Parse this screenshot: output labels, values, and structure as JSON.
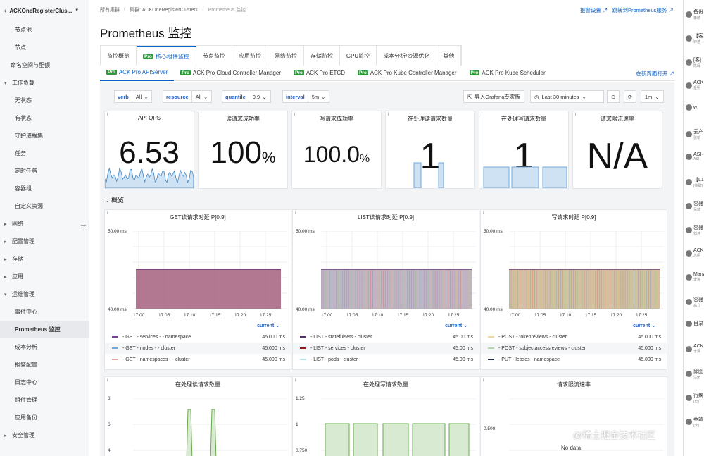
{
  "sidebar": {
    "cluster": "ACKOneRegisterClus...",
    "items": [
      {
        "label": "节点池",
        "type": "sub"
      },
      {
        "label": "节点",
        "type": "sub"
      },
      {
        "label": "命名空间与配额",
        "type": "top"
      },
      {
        "label": "工作负载",
        "type": "grp",
        "open": true
      },
      {
        "label": "无状态",
        "type": "sub"
      },
      {
        "label": "有状态",
        "type": "sub"
      },
      {
        "label": "守护进程集",
        "type": "sub"
      },
      {
        "label": "任务",
        "type": "sub"
      },
      {
        "label": "定时任务",
        "type": "sub"
      },
      {
        "label": "容器组",
        "type": "sub"
      },
      {
        "label": "自定义资源",
        "type": "sub"
      },
      {
        "label": "网络",
        "type": "grp",
        "open": false
      },
      {
        "label": "配置管理",
        "type": "grp",
        "open": false
      },
      {
        "label": "存储",
        "type": "grp",
        "open": false
      },
      {
        "label": "应用",
        "type": "grp",
        "open": false
      },
      {
        "label": "运维管理",
        "type": "grp",
        "open": true
      },
      {
        "label": "事件中心",
        "type": "sub"
      },
      {
        "label": "Prometheus 监控",
        "type": "sub",
        "active": true
      },
      {
        "label": "成本分析",
        "type": "sub"
      },
      {
        "label": "报警配置",
        "type": "sub"
      },
      {
        "label": "日志中心",
        "type": "sub"
      },
      {
        "label": "组件管理",
        "type": "sub"
      },
      {
        "label": "应用备份",
        "type": "sub"
      },
      {
        "label": "安全管理",
        "type": "grp",
        "open": false
      }
    ]
  },
  "breadcrumb": {
    "all": "所有集群",
    "cluster": "集群: ACKOneRegisterCluster1",
    "current": "Prometheus 监控"
  },
  "toplinks": {
    "alert": "报警设置",
    "grafana": "跳转到Prometheus服务"
  },
  "page": {
    "title": "Prometheus 监控"
  },
  "tabs1": [
    {
      "label": "监控概览"
    },
    {
      "label": "核心组件监控",
      "pro": "Pro",
      "active": true
    },
    {
      "label": "节点监控"
    },
    {
      "label": "应用监控"
    },
    {
      "label": "网络监控"
    },
    {
      "label": "存储监控"
    },
    {
      "label": "GPU监控"
    },
    {
      "label": "成本分析/资源优化"
    },
    {
      "label": "其他"
    }
  ],
  "tabs2": [
    {
      "pro": "Pro",
      "label": "ACK Pro APIServer",
      "active": true
    },
    {
      "pro": "Pro",
      "label": "ACK Pro Cloud Controller Manager"
    },
    {
      "pro": "Pro",
      "label": "ACK Pro ETCD"
    },
    {
      "pro": "Pro",
      "label": "ACK Pro Kube Controller Manager"
    },
    {
      "pro": "Pro",
      "label": "ACK Pro Kube Scheduler"
    }
  ],
  "newpage": "在新页面打开",
  "vars": {
    "verb": {
      "label": "verb",
      "value": "All"
    },
    "resource": {
      "label": "resource",
      "value": "All"
    },
    "quantile": {
      "label": "quantile",
      "value": "0.9"
    },
    "interval": {
      "label": "interval",
      "value": "5m"
    }
  },
  "toolbar": {
    "import": "导入Grafana专家版",
    "range": "Last 30 minutes",
    "refresh": "1m"
  },
  "stats": [
    {
      "title": "API QPS",
      "value": "6.53",
      "unit": ""
    },
    {
      "title": "读请求成功率",
      "value": "100",
      "unit": "%"
    },
    {
      "title": "写请求成功率",
      "value": "100.0",
      "unit": "%"
    },
    {
      "title": "在处理读请求数量",
      "value": "1",
      "unit": ""
    },
    {
      "title": "在处理写请求数量",
      "value": "1",
      "unit": ""
    },
    {
      "title": "请求限流速率",
      "value": "N/A",
      "unit": ""
    }
  ],
  "row_title": "概览",
  "charts": [
    {
      "title": "GET读请求时延 P[0.9]",
      "ymax": "50.00 ms",
      "ymin": "40.00 ms",
      "x": [
        "17:00",
        "17:05",
        "17:10",
        "17:15",
        "17:20",
        "17:25"
      ],
      "current": "current",
      "legend": [
        {
          "name": "- GET - services - - namespace",
          "value": "45.000 ms",
          "color": "#7b3f8c"
        },
        {
          "name": "- GET - nodes - - cluster",
          "value": "45.000 ms",
          "color": "#6fa8dc"
        },
        {
          "name": "- GET - namespaces - - cluster",
          "value": "45.000 ms",
          "color": "#e8a0a0"
        }
      ]
    },
    {
      "title": "LIST读请求时延 P[0.9]",
      "ymax": "50.00 ms",
      "ymin": "40.00 ms",
      "x": [
        "17:00",
        "17:05",
        "17:10",
        "17:15",
        "17:20",
        "17:25"
      ],
      "current": "current",
      "legend": [
        {
          "name": "- LIST - statefulsets - cluster",
          "value": "45.00 ms",
          "color": "#5b2c6f"
        },
        {
          "name": "- LIST - services - cluster",
          "value": "45.00 ms",
          "color": "#8b1a1a"
        },
        {
          "name": "- LIST - pods - cluster",
          "value": "45.00 ms",
          "color": "#b7e4e4"
        }
      ]
    },
    {
      "title": "写请求时延 P[0.9]",
      "ymax": "50.00 ms",
      "ymin": "40.00 ms",
      "x": [
        "17:00",
        "17:05",
        "17:10",
        "17:15",
        "17:20",
        "17:25"
      ],
      "current": "current",
      "legend": [
        {
          "name": "- POST - tokenreviews - cluster",
          "value": "45.000 ms",
          "color": "#f0d9a0"
        },
        {
          "name": "- POST - subjectaccessreviews - cluster",
          "value": "45.000 ms",
          "color": "#b6d7a8"
        },
        {
          "name": "- PUT - leases - namespace",
          "value": "45.000 ms",
          "color": "#1c2a48"
        }
      ]
    }
  ],
  "bottom": [
    {
      "title": "在处理读请求数量",
      "yticks": [
        "8",
        "6",
        "4"
      ]
    },
    {
      "title": "在处理写请求数量",
      "yticks": [
        "1.25",
        "1",
        "0.750"
      ]
    },
    {
      "title": "请求限流速率",
      "yticks": [
        "0.500"
      ],
      "nodata": "No data"
    }
  ],
  "rightstrip": [
    {
      "t": "备份",
      "s": "李鹏"
    },
    {
      "t": "【客",
      "s": "钟浩"
    },
    {
      "t": "[客]",
      "s": "陈辉"
    },
    {
      "t": "ACK",
      "s": "金明"
    },
    {
      "t": "w",
      "s": ""
    },
    {
      "t": "云产",
      "s": "张新"
    },
    {
      "t": "ASI·",
      "s": "ASI"
    },
    {
      "t": "【L1",
      "s": "[关联]"
    },
    {
      "t": "容器",
      "s": "吴茂"
    },
    {
      "t": "容器",
      "s": "刘佳"
    },
    {
      "t": "ACK·",
      "s": "苏绍"
    },
    {
      "t": "Mana",
      "s": "史涛"
    },
    {
      "t": "容器",
      "s": "高立"
    },
    {
      "t": "目录",
      "s": ""
    },
    {
      "t": "ACK",
      "s": "李泽"
    },
    {
      "t": "邱图",
      "s": "注册"
    },
    {
      "t": "行疾",
      "s": "[已]"
    },
    {
      "t": "蔡靖",
      "s": "[未]"
    }
  ],
  "watermark": "@稀土掘金技术社区",
  "colors": {
    "accent": "#0a63c9",
    "pro": "#2e9b3a",
    "var_label": "#1f60c4",
    "series_blue": "#6fa8dc",
    "series_green": "#7ebf76"
  }
}
